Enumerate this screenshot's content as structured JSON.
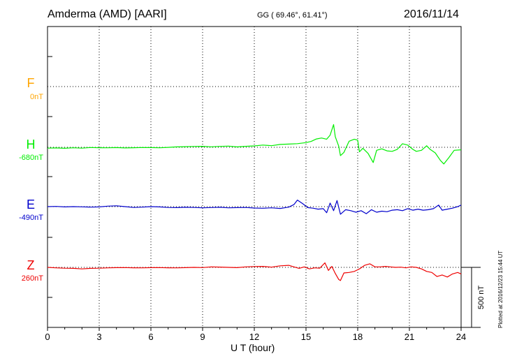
{
  "header": {
    "station": "Amderma (AMD)  [AARI]",
    "coords": "GG ( 69.46°,  61.41°)",
    "date": "2016/11/14"
  },
  "footer": {
    "plotted": "Plotted at 2016/12/23 15:44 UT"
  },
  "chart_data": {
    "type": "line",
    "xlabel": "U T (hour)",
    "xlim": [
      0,
      24
    ],
    "xticks": [
      0,
      3,
      6,
      9,
      12,
      15,
      18,
      21,
      24
    ],
    "grid": true,
    "scale_bar": "500 nT",
    "series": [
      {
        "name": "F",
        "baseline": "0nT",
        "color": "#ffa500",
        "x": [],
        "y": []
      },
      {
        "name": "H",
        "baseline": "-680nT",
        "color": "#00ee00",
        "x": [
          0,
          0.5,
          1,
          1.5,
          2,
          2.5,
          3,
          3.5,
          4,
          4.5,
          5,
          5.5,
          6,
          6.5,
          7,
          7.5,
          8,
          8.5,
          9,
          9.5,
          10,
          10.5,
          11,
          11.5,
          12,
          12.5,
          13,
          13.5,
          14,
          14.5,
          15,
          15.3,
          15.6,
          15.9,
          16.2,
          16.4,
          16.6,
          16.7,
          16.9,
          17.0,
          17.2,
          17.5,
          17.8,
          18.0,
          18.1,
          18.3,
          18.6,
          18.9,
          19.1,
          19.4,
          19.7,
          20.0,
          20.3,
          20.6,
          20.9,
          21.2,
          21.4,
          21.7,
          22.0,
          22.2,
          22.5,
          22.8,
          23.0,
          23.3,
          23.6,
          24
        ],
        "y": [
          -8,
          -6,
          -10,
          -5,
          -8,
          -2,
          -4,
          -5,
          -3,
          -6,
          -4,
          -2,
          -3,
          -5,
          -1,
          4,
          6,
          8,
          10,
          5,
          9,
          12,
          4,
          10,
          14,
          22,
          16,
          28,
          32,
          36,
          46,
          58,
          82,
          92,
          80,
          120,
          225,
          105,
          10,
          -82,
          -50,
          60,
          80,
          70,
          -45,
          -10,
          -60,
          -150,
          -30,
          -15,
          -35,
          -40,
          -20,
          35,
          22,
          -20,
          -40,
          -30,
          15,
          -20,
          -55,
          -130,
          -165,
          -100,
          -30,
          -25
        ]
      },
      {
        "name": "E",
        "baseline": "-490nT",
        "color": "#0000cc",
        "x": [
          0,
          0.5,
          1,
          1.5,
          2,
          2.5,
          3,
          3.5,
          4,
          4.5,
          5,
          5.5,
          6,
          6.5,
          7,
          7.5,
          8,
          8.5,
          9,
          9.5,
          10,
          10.5,
          11,
          11.5,
          12,
          12.5,
          13,
          13.5,
          14,
          14.3,
          14.5,
          14.8,
          15.1,
          15.4,
          15.7,
          16.0,
          16.2,
          16.4,
          16.6,
          16.8,
          17.0,
          17.3,
          17.6,
          17.9,
          18.2,
          18.5,
          18.8,
          19.1,
          19.4,
          19.7,
          20.0,
          20.3,
          20.6,
          20.9,
          21.2,
          21.5,
          21.8,
          22.1,
          22.4,
          22.7,
          22.9,
          23.2,
          23.5,
          23.8,
          24
        ],
        "y": [
          0,
          2,
          -3,
          0,
          -2,
          -5,
          -3,
          5,
          8,
          0,
          -8,
          -5,
          0,
          -3,
          -8,
          -10,
          -6,
          -8,
          -12,
          -9,
          -6,
          -12,
          -10,
          -8,
          -14,
          -16,
          -12,
          -18,
          -5,
          20,
          65,
          30,
          -10,
          -15,
          -25,
          -20,
          -60,
          35,
          -40,
          60,
          -75,
          -30,
          -40,
          -55,
          -40,
          -70,
          -30,
          -55,
          -45,
          -50,
          -35,
          -30,
          -40,
          -20,
          -35,
          -25,
          -35,
          -30,
          -20,
          15,
          -35,
          -25,
          -15,
          0,
          15
        ]
      },
      {
        "name": "Z",
        "baseline": "260nT",
        "color": "#ee0000",
        "x": [
          0,
          0.5,
          1,
          1.5,
          2,
          2.5,
          3,
          3.5,
          4,
          4.5,
          5,
          5.5,
          6,
          6.5,
          7,
          7.5,
          8,
          8.5,
          9,
          9.5,
          10,
          10.5,
          11,
          11.5,
          12,
          12.5,
          13,
          13.5,
          14,
          14.3,
          14.6,
          14.9,
          15.2,
          15.5,
          15.8,
          16.1,
          16.3,
          16.5,
          16.7,
          16.9,
          17.0,
          17.2,
          17.5,
          17.8,
          18.1,
          18.4,
          18.7,
          19.0,
          19.3,
          19.6,
          19.9,
          20.2,
          20.5,
          20.8,
          21.1,
          21.4,
          21.7,
          22.0,
          22.3,
          22.6,
          22.9,
          23.2,
          23.5,
          23.8,
          24
        ],
        "y": [
          0,
          -5,
          -8,
          -10,
          -15,
          -10,
          -8,
          -5,
          -3,
          -2,
          -4,
          -5,
          -3,
          -2,
          -4,
          -5,
          -3,
          0,
          -2,
          5,
          3,
          0,
          -3,
          5,
          8,
          10,
          2,
          15,
          20,
          5,
          -10,
          5,
          -15,
          -5,
          -8,
          45,
          -30,
          10,
          -60,
          -120,
          -130,
          -55,
          -50,
          -40,
          -15,
          20,
          35,
          5,
          5,
          10,
          5,
          0,
          2,
          -5,
          5,
          0,
          -15,
          -40,
          -50,
          -90,
          -75,
          -95,
          -65,
          -50,
          -65
        ]
      }
    ]
  }
}
